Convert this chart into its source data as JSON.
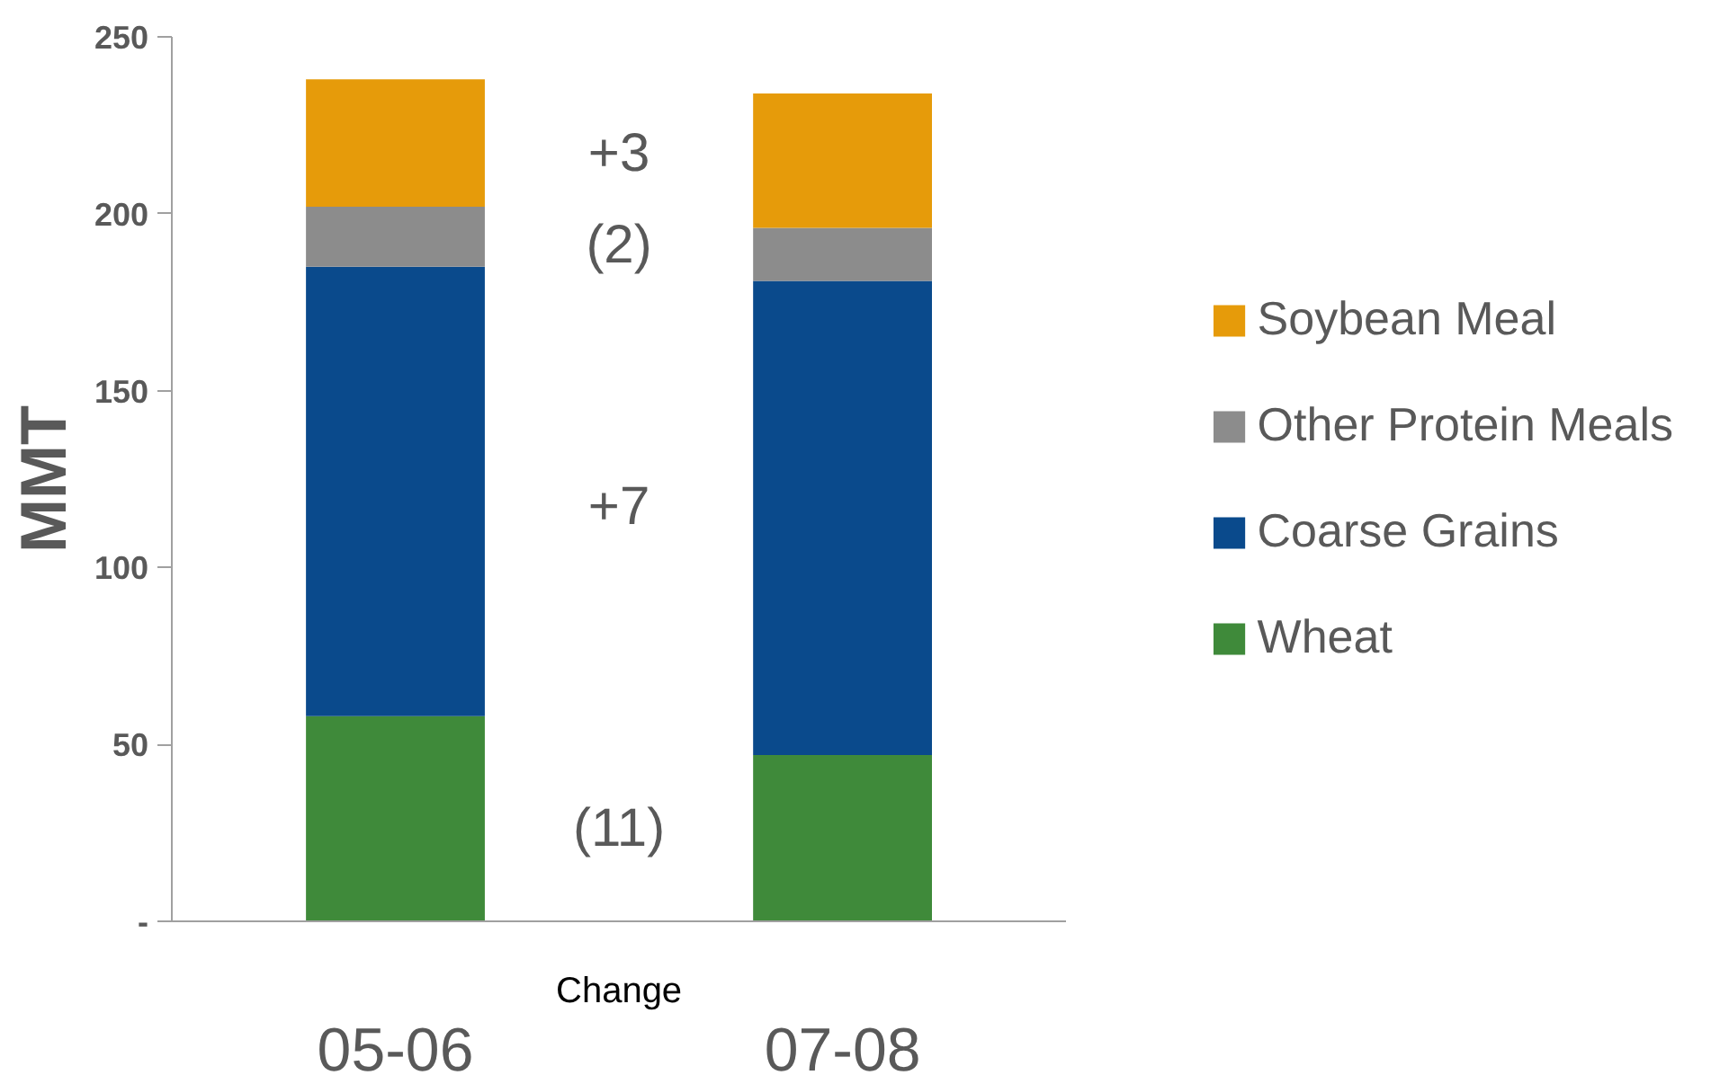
{
  "chart_data": {
    "type": "bar",
    "stacked": true,
    "ylabel": "MMT",
    "categories": [
      "05-06",
      "07-08"
    ],
    "series": [
      {
        "name": "Wheat",
        "color": "#3f8a3a",
        "values": [
          58,
          47
        ]
      },
      {
        "name": "Coarse Grains",
        "color": "#0a4a8c",
        "values": [
          127,
          134
        ]
      },
      {
        "name": "Other Protein Meals",
        "color": "#8c8c8c",
        "values": [
          17,
          15
        ]
      },
      {
        "name": "Soybean Meal",
        "color": "#e69b0a",
        "values": [
          36,
          38
        ]
      }
    ],
    "ylim": [
      0,
      250
    ],
    "yticks": [
      {
        "value": 0,
        "label": "-"
      },
      50,
      100,
      150,
      200,
      250
    ],
    "grid": false,
    "legend": "right",
    "annotations": [
      "+3",
      "(2)",
      "+7",
      "(11)",
      "Change"
    ]
  }
}
